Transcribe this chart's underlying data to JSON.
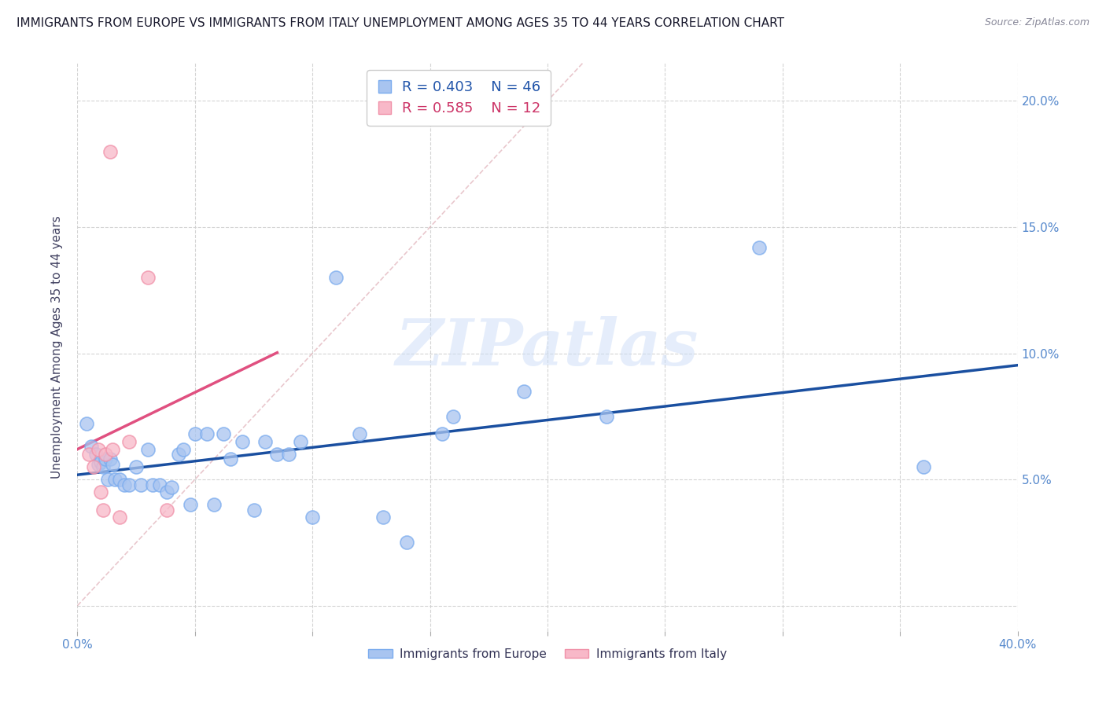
{
  "title": "IMMIGRANTS FROM EUROPE VS IMMIGRANTS FROM ITALY UNEMPLOYMENT AMONG AGES 35 TO 44 YEARS CORRELATION CHART",
  "source": "Source: ZipAtlas.com",
  "ylabel": "Unemployment Among Ages 35 to 44 years",
  "xlim": [
    0.0,
    0.4
  ],
  "ylim": [
    -0.01,
    0.215
  ],
  "xticks": [
    0.0,
    0.05,
    0.1,
    0.15,
    0.2,
    0.25,
    0.3,
    0.35,
    0.4
  ],
  "xtick_labels": [
    "0.0%",
    "",
    "",
    "",
    "",
    "",
    "",
    "",
    "40.0%"
  ],
  "yticks": [
    0.0,
    0.05,
    0.1,
    0.15,
    0.2
  ],
  "ytick_labels_right": [
    "",
    "5.0%",
    "10.0%",
    "15.0%",
    "20.0%"
  ],
  "blue_scatter_color": "#a8c4f0",
  "blue_edge_color": "#7aabee",
  "pink_scatter_color": "#f8b8c8",
  "pink_edge_color": "#f090a8",
  "line_blue": "#1a4fa0",
  "line_pink": "#e05080",
  "diag_color": "#e0b0b8",
  "R_blue": 0.403,
  "N_blue": 46,
  "R_pink": 0.585,
  "N_pink": 12,
  "blue_scatter_x": [
    0.004,
    0.006,
    0.008,
    0.009,
    0.01,
    0.011,
    0.012,
    0.013,
    0.014,
    0.015,
    0.016,
    0.018,
    0.02,
    0.022,
    0.025,
    0.027,
    0.03,
    0.032,
    0.035,
    0.038,
    0.04,
    0.043,
    0.045,
    0.048,
    0.05,
    0.055,
    0.058,
    0.062,
    0.065,
    0.07,
    0.075,
    0.08,
    0.085,
    0.09,
    0.095,
    0.1,
    0.11,
    0.12,
    0.13,
    0.14,
    0.155,
    0.16,
    0.19,
    0.225,
    0.29,
    0.36
  ],
  "blue_scatter_y": [
    0.072,
    0.063,
    0.06,
    0.056,
    0.057,
    0.055,
    0.058,
    0.05,
    0.058,
    0.056,
    0.05,
    0.05,
    0.048,
    0.048,
    0.055,
    0.048,
    0.062,
    0.048,
    0.048,
    0.045,
    0.047,
    0.06,
    0.062,
    0.04,
    0.068,
    0.068,
    0.04,
    0.068,
    0.058,
    0.065,
    0.038,
    0.065,
    0.06,
    0.06,
    0.065,
    0.035,
    0.13,
    0.068,
    0.035,
    0.025,
    0.068,
    0.075,
    0.085,
    0.075,
    0.142,
    0.055
  ],
  "pink_scatter_x": [
    0.005,
    0.007,
    0.009,
    0.01,
    0.011,
    0.012,
    0.014,
    0.015,
    0.018,
    0.022,
    0.03,
    0.038
  ],
  "pink_scatter_y": [
    0.06,
    0.055,
    0.062,
    0.045,
    0.038,
    0.06,
    0.18,
    0.062,
    0.035,
    0.065,
    0.13,
    0.038
  ],
  "watermark_text": "ZIPatlas",
  "background_color": "#ffffff",
  "grid_color": "#d0d0d0",
  "tick_color": "#5588cc",
  "ylabel_color": "#404060",
  "title_color": "#1a1a2e",
  "source_color": "#888899",
  "legend_text_blue": "#2255aa",
  "legend_text_pink": "#cc3366",
  "bottom_legend_text_color": "#333355"
}
